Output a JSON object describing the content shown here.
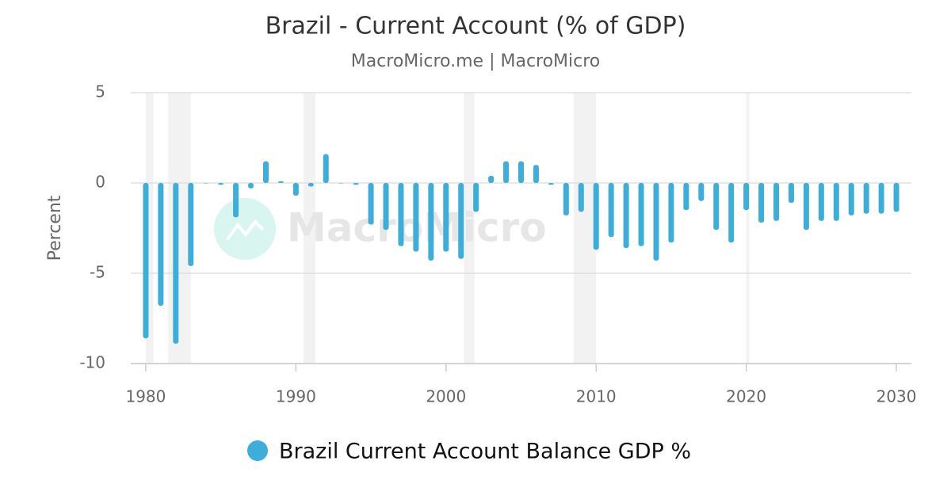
{
  "chart_data": {
    "type": "bar",
    "title": "Brazil - Current Account (% of GDP)",
    "subtitle": "MacroMicro.me | MacroMicro",
    "watermark": "MacroMicro",
    "y_label": "Percent",
    "x": [
      1980,
      1981,
      1982,
      1983,
      1984,
      1985,
      1986,
      1987,
      1988,
      1989,
      1990,
      1991,
      1992,
      1993,
      1994,
      1995,
      1996,
      1997,
      1998,
      1999,
      2000,
      2001,
      2002,
      2003,
      2004,
      2005,
      2006,
      2007,
      2008,
      2009,
      2010,
      2011,
      2012,
      2013,
      2014,
      2015,
      2016,
      2017,
      2018,
      2019,
      2020,
      2021,
      2022,
      2023,
      2024,
      2025,
      2026,
      2027,
      2028,
      2029,
      2030
    ],
    "series": [
      {
        "name": "Brazil Current Account Balance GDP %",
        "color": "#3daed9",
        "values": [
          -8.6,
          -6.8,
          -8.9,
          -4.6,
          0,
          -0.1,
          -1.9,
          -0.3,
          1.2,
          0.1,
          -0.7,
          -0.2,
          1.6,
          0,
          -0.1,
          -2.3,
          -2.6,
          -3.5,
          -3.8,
          -4.3,
          -3.8,
          -4.2,
          -1.6,
          0.4,
          1.2,
          1.2,
          1.0,
          -0.1,
          -1.8,
          -1.6,
          -3.7,
          -3.0,
          -3.6,
          -3.5,
          -4.3,
          -3.3,
          -1.5,
          -1.0,
          -2.6,
          -3.3,
          -1.5,
          -2.2,
          -2.1,
          -1.1,
          -2.6,
          -2.1,
          -2.1,
          -1.8,
          -1.7,
          -1.7,
          -1.6
        ]
      }
    ],
    "recessions": [
      [
        1980.0,
        1980.5
      ],
      [
        1981.5,
        1983.0
      ],
      [
        1990.5,
        1991.3
      ],
      [
        2001.2,
        2001.9
      ],
      [
        2008.5,
        2010.0
      ],
      [
        2020.0,
        2020.2
      ]
    ],
    "xlim": [
      1979,
      2031
    ],
    "xticks": [
      1980,
      1990,
      2000,
      2010,
      2020,
      2030
    ],
    "ylim": [
      -10,
      5
    ],
    "yticks": [
      -10,
      -5,
      0,
      5
    ],
    "grid": true
  }
}
